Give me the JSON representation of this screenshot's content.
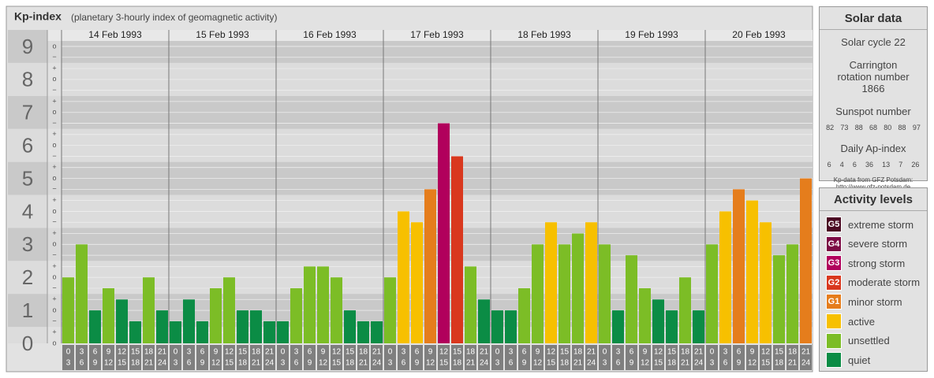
{
  "title": "Kp-index",
  "subtitle": "(planetary 3-hourly index of geomagnetic activity)",
  "chart_data": {
    "type": "bar",
    "ylim": [
      0,
      9.5
    ],
    "yticks": [
      0,
      1,
      2,
      3,
      4,
      5,
      6,
      7,
      8,
      9
    ],
    "minor_ticks": [
      {
        "value": 0,
        "label": "o"
      },
      {
        "value": 0.33,
        "label": "+"
      },
      {
        "value": 0.67,
        "label": "−"
      },
      {
        "value": 1,
        "label": "o"
      },
      {
        "value": 1.33,
        "label": "+"
      },
      {
        "value": 1.67,
        "label": "−"
      },
      {
        "value": 2,
        "label": "o"
      },
      {
        "value": 2.33,
        "label": "+"
      },
      {
        "value": 2.67,
        "label": "−"
      },
      {
        "value": 3,
        "label": "o"
      },
      {
        "value": 3.33,
        "label": "+"
      },
      {
        "value": 3.67,
        "label": "−"
      },
      {
        "value": 4,
        "label": "o"
      },
      {
        "value": 4.33,
        "label": "+"
      },
      {
        "value": 4.67,
        "label": "−"
      },
      {
        "value": 5,
        "label": "o"
      },
      {
        "value": 5.33,
        "label": "+"
      },
      {
        "value": 5.67,
        "label": "−"
      },
      {
        "value": 6,
        "label": "o"
      },
      {
        "value": 6.33,
        "label": "+"
      },
      {
        "value": 6.67,
        "label": "−"
      },
      {
        "value": 7,
        "label": "o"
      },
      {
        "value": 7.33,
        "label": "+"
      },
      {
        "value": 7.67,
        "label": "−"
      },
      {
        "value": 8,
        "label": "o"
      },
      {
        "value": 8.33,
        "label": "+"
      },
      {
        "value": 8.67,
        "label": "−"
      },
      {
        "value": 9,
        "label": "o"
      }
    ],
    "hours": [
      0,
      3,
      6,
      9,
      12,
      15,
      18,
      21,
      24
    ],
    "series": [
      {
        "name": "14 Feb 1993",
        "values": [
          2,
          3,
          1,
          1.67,
          1.33,
          0.67,
          2,
          1
        ],
        "colors": [
          "#7cbd26",
          "#7cbd26",
          "#0b8c45",
          "#7cbd26",
          "#0b8c45",
          "#0b8c45",
          "#7cbd26",
          "#0b8c45"
        ]
      },
      {
        "name": "15 Feb 1993",
        "values": [
          0.67,
          1.33,
          0.67,
          1.67,
          2,
          1,
          1,
          0.67
        ],
        "colors": [
          "#0b8c45",
          "#0b8c45",
          "#0b8c45",
          "#7cbd26",
          "#7cbd26",
          "#0b8c45",
          "#0b8c45",
          "#0b8c45"
        ]
      },
      {
        "name": "16 Feb 1993",
        "values": [
          0.67,
          1.67,
          2.33,
          2.33,
          2,
          1,
          0.67,
          0.67
        ],
        "colors": [
          "#0b8c45",
          "#7cbd26",
          "#7cbd26",
          "#7cbd26",
          "#7cbd26",
          "#0b8c45",
          "#0b8c45",
          "#0b8c45"
        ]
      },
      {
        "name": "17 Feb 1993",
        "values": [
          2,
          4,
          3.67,
          4.67,
          6.67,
          5.67,
          2.33,
          1.33
        ],
        "colors": [
          "#7cbd26",
          "#f7c000",
          "#f7c000",
          "#e57d1c",
          "#b1005c",
          "#d9381e",
          "#7cbd26",
          "#0b8c45"
        ]
      },
      {
        "name": "18 Feb 1993",
        "values": [
          1,
          1,
          1.67,
          3,
          3.67,
          3,
          3.33,
          3.67
        ],
        "colors": [
          "#0b8c45",
          "#0b8c45",
          "#7cbd26",
          "#7cbd26",
          "#f7c000",
          "#7cbd26",
          "#7cbd26",
          "#f7c000"
        ]
      },
      {
        "name": "19 Feb 1993",
        "values": [
          3,
          1,
          2.67,
          1.67,
          1.33,
          1,
          2,
          1
        ],
        "colors": [
          "#7cbd26",
          "#0b8c45",
          "#7cbd26",
          "#7cbd26",
          "#0b8c45",
          "#0b8c45",
          "#7cbd26",
          "#0b8c45"
        ]
      },
      {
        "name": "20 Feb 1993",
        "values": [
          3,
          4,
          4.67,
          4.33,
          3.67,
          2.67,
          3,
          5
        ],
        "colors": [
          "#7cbd26",
          "#f7c000",
          "#e57d1c",
          "#f7c000",
          "#f7c000",
          "#7cbd26",
          "#7cbd26",
          "#e57d1c"
        ]
      }
    ]
  },
  "solar_data": {
    "title": "Solar data",
    "cycle": "Solar cycle 22",
    "carrington": "Carrington rotation number 1866",
    "sunspot_title": "Sunspot number",
    "sunspot": [
      82,
      73,
      88,
      68,
      80,
      88,
      97
    ],
    "ap_title": "Daily Ap-index",
    "ap": [
      6,
      4,
      6,
      36,
      13,
      7,
      26
    ],
    "source": "Kp-data from GFZ Potsdam:",
    "url": "http://www.gfz-potsdam.de"
  },
  "legend": {
    "title": "Activity levels",
    "items": [
      {
        "code": "G5",
        "label": "extreme storm",
        "color": "#4b0a23"
      },
      {
        "code": "G4",
        "label": "severe storm",
        "color": "#7c0b45"
      },
      {
        "code": "G3",
        "label": "strong storm",
        "color": "#b1005c"
      },
      {
        "code": "G2",
        "label": "moderate storm",
        "color": "#d9381e"
      },
      {
        "code": "G1",
        "label": "minor storm",
        "color": "#e57d1c"
      },
      {
        "label": "active",
        "color": "#f7c000"
      },
      {
        "label": "unsettled",
        "color": "#7cbd26"
      },
      {
        "label": "quiet",
        "color": "#0b8c45"
      }
    ]
  }
}
